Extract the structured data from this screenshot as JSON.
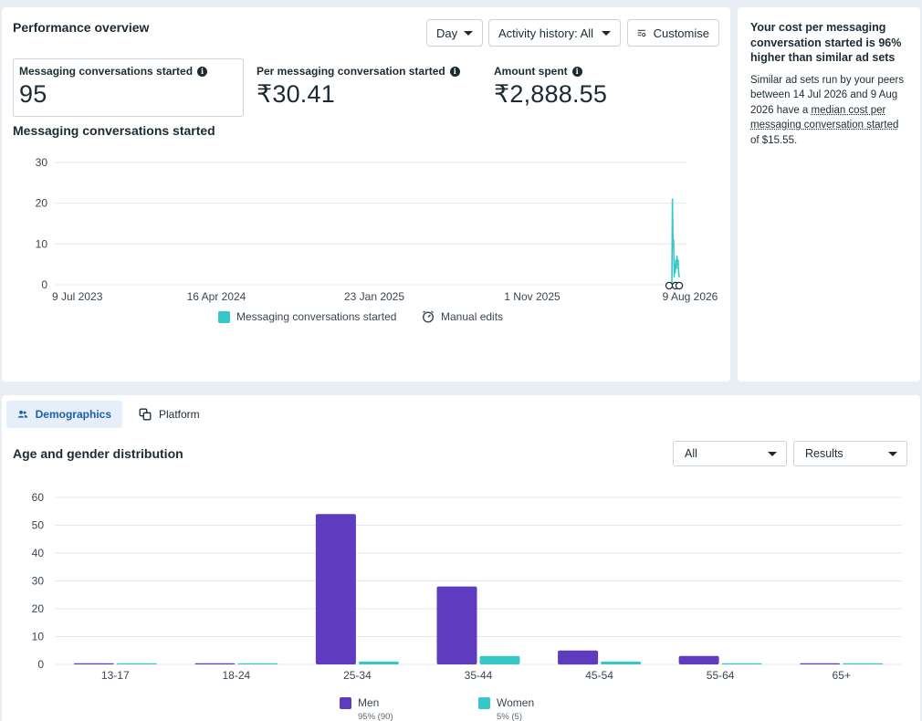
{
  "performance": {
    "title": "Performance overview",
    "controls": {
      "day_label": "Day",
      "activity_label": "Activity history: All",
      "customise_label": "Customise"
    },
    "metrics": [
      {
        "label": "Messaging conversations started",
        "value": "95"
      },
      {
        "label": "Per messaging conversation started",
        "value": "₹30.41"
      },
      {
        "label": "Amount spent",
        "value": "₹2,888.55"
      }
    ],
    "chart_title": "Messaging conversations started",
    "legend": {
      "series_label": "Messaging conversations started",
      "manual_edits_label": "Manual edits"
    }
  },
  "tip": {
    "title": "Your cost per messaging conversation started is 96% higher than similar ad sets",
    "body_pre": "Similar ad sets run by your peers between 14 Jul 2026 and 9 Aug 2026 have a ",
    "body_link": "median cost per messaging conversation started",
    "body_post": " of $15.55."
  },
  "demographics": {
    "tabs": [
      {
        "label": "Demographics",
        "icon": "people-icon"
      },
      {
        "label": "Platform",
        "icon": "copy-icon"
      }
    ],
    "title": "Age and gender distribution",
    "filters": {
      "all_label": "All",
      "results_label": "Results"
    },
    "legend": [
      {
        "name": "Men",
        "sub": "95% (90)"
      },
      {
        "name": "Women",
        "sub": "5% (5)"
      }
    ]
  },
  "colors": {
    "men": "#5e3bbf",
    "women": "#38c7c9",
    "line": "#38c7c9",
    "accent": "#1c5fa8"
  },
  "chart_data": [
    {
      "type": "line",
      "title": "Messaging conversations started",
      "x_ticks": [
        "9 Jul 2023",
        "16 Apr 2024",
        "23 Jan 2025",
        "1 Nov 2025",
        "9 Aug 2026"
      ],
      "x_range": [
        "2023-07-09",
        "2026-08-09"
      ],
      "ylim": [
        0,
        30
      ],
      "y_ticks": [
        0,
        10,
        20,
        30
      ],
      "series": [
        {
          "name": "Messaging conversations started",
          "points": [
            [
              "2026-07-14",
              0
            ],
            [
              "2026-07-15",
              21
            ],
            [
              "2026-07-16",
              9
            ],
            [
              "2026-07-17",
              11
            ],
            [
              "2026-07-18",
              2
            ],
            [
              "2026-07-19",
              5
            ],
            [
              "2026-07-20",
              3
            ],
            [
              "2026-07-21",
              6
            ],
            [
              "2026-07-22",
              4
            ],
            [
              "2026-07-23",
              7
            ],
            [
              "2026-07-24",
              5
            ],
            [
              "2026-07-25",
              6
            ],
            [
              "2026-07-26",
              3
            ],
            [
              "2026-07-27",
              2
            ]
          ]
        }
      ],
      "grid": true,
      "legend_position": "bottom"
    },
    {
      "type": "bar",
      "title": "Age and gender distribution",
      "categories": [
        "13-17",
        "18-24",
        "25-34",
        "35-44",
        "45-54",
        "55-64",
        "65+"
      ],
      "series": [
        {
          "name": "Men",
          "values": [
            0,
            0,
            54,
            28,
            5,
            3,
            0
          ]
        },
        {
          "name": "Women",
          "values": [
            0,
            0,
            1,
            3,
            1,
            0,
            0
          ]
        }
      ],
      "ylim": [
        0,
        60
      ],
      "y_ticks": [
        0,
        10,
        20,
        30,
        40,
        50,
        60
      ],
      "grid": true,
      "legend_position": "bottom"
    }
  ]
}
